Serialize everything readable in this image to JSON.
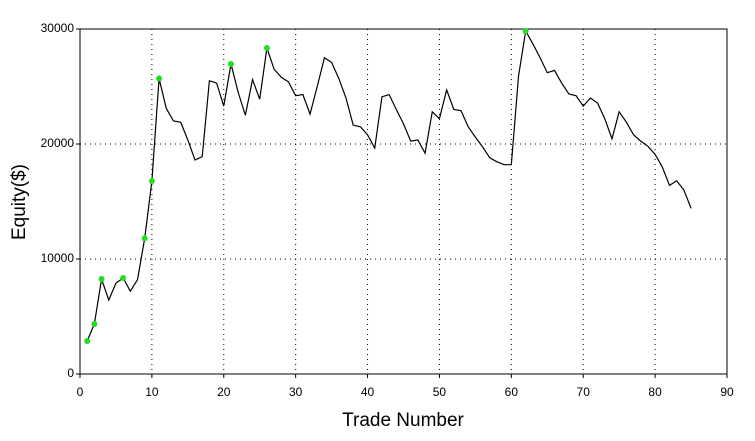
{
  "chart_data": {
    "type": "line",
    "x_label": "Trade Number",
    "y_label": "Equity($)",
    "x": [
      1,
      2,
      3,
      4,
      5,
      6,
      7,
      8,
      9,
      10,
      11,
      12,
      13,
      14,
      15,
      16,
      17,
      18,
      19,
      20,
      21,
      22,
      23,
      24,
      25,
      26,
      27,
      28,
      29,
      30,
      31,
      32,
      33,
      34,
      35,
      36,
      37,
      38,
      39,
      40,
      41,
      42,
      43,
      44,
      45,
      46,
      47,
      48,
      49,
      50,
      51,
      52,
      53,
      54,
      55,
      56,
      57,
      58,
      59,
      60,
      61,
      62,
      63,
      64,
      65,
      66,
      67,
      68,
      69,
      70,
      71,
      72,
      73,
      74,
      75,
      76,
      77,
      78,
      79,
      80,
      81,
      82,
      83,
      84,
      85
    ],
    "series": [
      {
        "color": "#000000",
        "marker_color": "#22dd22",
        "values": [
          2870,
          4350,
          8260,
          6430,
          7900,
          8350,
          7200,
          8200,
          11800,
          16780,
          25700,
          23100,
          22000,
          21900,
          20350,
          18600,
          18900,
          25500,
          25300,
          23300,
          26960,
          24500,
          22500,
          25600,
          23900,
          28350,
          26500,
          25800,
          25400,
          24200,
          24300,
          22600,
          25000,
          27500,
          27100,
          25700,
          24000,
          21650,
          21500,
          20800,
          19650,
          24100,
          24300,
          23000,
          21750,
          20250,
          20350,
          19200,
          22800,
          22200,
          24700,
          23000,
          22900,
          21500,
          20600,
          19750,
          18800,
          18450,
          18200,
          18200,
          25900,
          29830,
          28700,
          27500,
          26200,
          26400,
          25300,
          24350,
          24200,
          23300,
          24000,
          23550,
          22200,
          20450,
          22800,
          21900,
          20800,
          20250,
          19800,
          19100,
          18000,
          16400,
          16800,
          16000,
          14400
        ]
      }
    ],
    "xlim": [
      0,
      90
    ],
    "xticks": [
      0,
      10,
      20,
      30,
      40,
      50,
      60,
      70,
      80,
      90
    ],
    "ylim": [
      0,
      30000
    ],
    "yticks": [
      0,
      10000,
      20000,
      30000
    ],
    "grid": true
  }
}
